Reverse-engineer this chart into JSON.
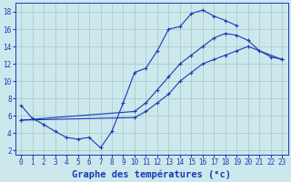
{
  "xlabel": "Graphe des températures (°c)",
  "background_color": "#cce8ed",
  "grid_color": "#aacccc",
  "line_color": "#1a3ab5",
  "xlim": [
    -0.5,
    23.5
  ],
  "ylim": [
    1.5,
    19
  ],
  "xticks": [
    0,
    1,
    2,
    3,
    4,
    5,
    6,
    7,
    8,
    9,
    10,
    11,
    12,
    13,
    14,
    15,
    16,
    17,
    18,
    19,
    20,
    21,
    22,
    23
  ],
  "yticks": [
    2,
    4,
    6,
    8,
    10,
    12,
    14,
    16,
    18
  ],
  "line1_y": [
    7.2,
    5.7,
    5.0,
    4.2,
    3.5,
    3.3,
    3.5,
    2.3,
    4.2,
    7.5,
    11.0,
    11.5,
    13.5,
    16.0,
    16.3,
    17.8,
    18.2,
    17.5,
    17.0,
    16.4,
    null,
    null,
    null,
    null
  ],
  "line2_y": [
    5.5,
    null,
    null,
    null,
    null,
    null,
    null,
    null,
    null,
    null,
    null,
    null,
    null,
    null,
    null,
    null,
    null,
    null,
    null,
    null,
    null,
    null,
    null,
    12.5
  ],
  "line3_y": [
    5.5,
    null,
    null,
    null,
    null,
    null,
    null,
    null,
    null,
    null,
    null,
    null,
    null,
    null,
    null,
    null,
    null,
    null,
    null,
    null,
    null,
    null,
    null,
    12.5
  ],
  "line2_points_x": [
    0,
    10,
    11,
    12,
    13,
    14,
    15,
    16,
    17,
    18,
    19,
    20,
    21,
    22,
    23
  ],
  "line2_points_y": [
    5.5,
    6.5,
    7.5,
    9.0,
    10.5,
    12.0,
    13.0,
    14.0,
    15.0,
    15.5,
    15.3,
    14.7,
    13.5,
    12.8,
    12.5
  ],
  "line3_points_x": [
    0,
    10,
    11,
    12,
    13,
    14,
    15,
    16,
    17,
    18,
    19,
    20,
    23
  ],
  "line3_points_y": [
    5.5,
    5.8,
    6.5,
    7.5,
    8.5,
    10.0,
    11.0,
    12.0,
    12.5,
    13.0,
    13.5,
    14.0,
    12.5
  ],
  "tick_fontsize": 5.5,
  "xlabel_fontsize": 7.5
}
